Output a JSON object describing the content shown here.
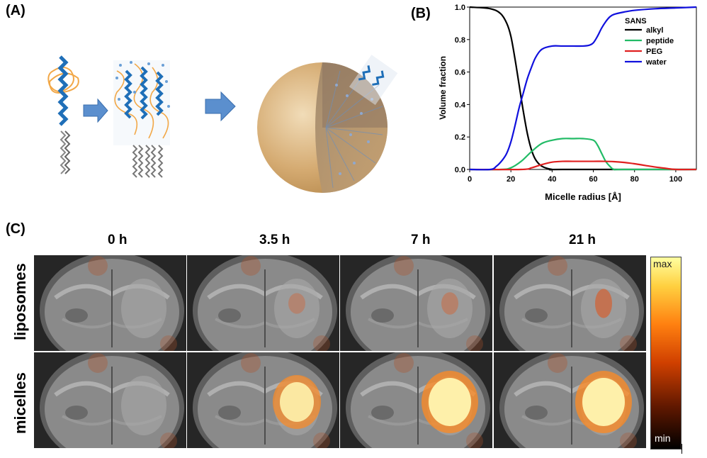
{
  "panels": {
    "a": "(A)",
    "b": "(B)",
    "c": "(C)"
  },
  "chart_data": {
    "type": "line",
    "xlabel": "Micelle radius [Å]",
    "ylabel": "Volume fraction",
    "xlim": [
      0,
      110
    ],
    "ylim": [
      0,
      1.0
    ],
    "xticks": [
      0,
      20,
      40,
      60,
      80,
      100
    ],
    "yticks": [
      0.0,
      0.2,
      0.4,
      0.6,
      0.8,
      1.0
    ],
    "legend_title": "SANS",
    "legend_position": "top-right",
    "series": [
      {
        "name": "alkyl",
        "color": "#000000",
        "x": [
          0,
          10,
          15,
          18,
          20,
          22,
          24,
          26,
          28,
          30,
          32,
          35,
          40,
          45,
          110
        ],
        "y": [
          1.0,
          0.99,
          0.96,
          0.9,
          0.82,
          0.68,
          0.52,
          0.36,
          0.22,
          0.12,
          0.06,
          0.02,
          0.0,
          0.0,
          0.0
        ]
      },
      {
        "name": "peptide",
        "color": "#22bb66",
        "x": [
          0,
          15,
          20,
          25,
          30,
          35,
          40,
          45,
          50,
          55,
          60,
          62,
          64,
          66,
          68,
          70,
          75,
          110
        ],
        "y": [
          0.0,
          0.0,
          0.01,
          0.05,
          0.11,
          0.16,
          0.18,
          0.19,
          0.19,
          0.19,
          0.18,
          0.15,
          0.1,
          0.05,
          0.02,
          0.0,
          0.0,
          0.0
        ]
      },
      {
        "name": "PEG",
        "color": "#e02020",
        "x": [
          0,
          25,
          30,
          35,
          40,
          45,
          50,
          60,
          65,
          70,
          75,
          80,
          85,
          90,
          95,
          100,
          110
        ],
        "y": [
          0.0,
          0.0,
          0.01,
          0.03,
          0.045,
          0.05,
          0.05,
          0.05,
          0.05,
          0.048,
          0.043,
          0.035,
          0.025,
          0.015,
          0.007,
          0.0,
          0.0
        ]
      },
      {
        "name": "water",
        "color": "#1010dd",
        "x": [
          0,
          10,
          13,
          16,
          18,
          20,
          22,
          24,
          26,
          28,
          30,
          32,
          35,
          40,
          45,
          50,
          55,
          58,
          60,
          62,
          64,
          66,
          68,
          70,
          75,
          80,
          90,
          100,
          110
        ],
        "y": [
          0.0,
          0.0,
          0.02,
          0.06,
          0.1,
          0.17,
          0.27,
          0.38,
          0.47,
          0.56,
          0.63,
          0.69,
          0.74,
          0.76,
          0.76,
          0.76,
          0.76,
          0.765,
          0.78,
          0.82,
          0.87,
          0.91,
          0.94,
          0.955,
          0.97,
          0.98,
          0.99,
          0.995,
          1.0
        ]
      }
    ]
  },
  "time_labels": [
    "0 h",
    "3.5 h",
    "7 h",
    "21 h"
  ],
  "row_labels": [
    "liposomes",
    "micelles"
  ],
  "colorbar": {
    "max": "max",
    "min": "min"
  },
  "signal": {
    "liposomes": [
      0.0,
      0.05,
      0.15,
      0.55
    ],
    "micelles": [
      0.0,
      0.85,
      1.0,
      1.0
    ]
  }
}
